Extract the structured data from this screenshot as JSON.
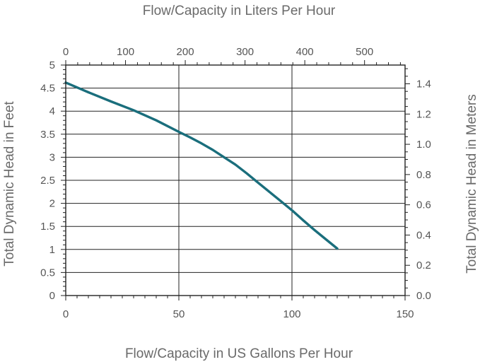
{
  "chart_data": {
    "type": "line",
    "title": "",
    "xlabel": "Flow/Capacity in US Gallons Per Hour",
    "ylabel": "Total Dynamic Head in Feet",
    "x2label": "Flow/Capacity in Liters Per Hour",
    "y2label": "Total Dynamic Head in Meters",
    "xlim": [
      0,
      150
    ],
    "ylim": [
      0,
      5
    ],
    "x2lim": [
      0,
      567.8
    ],
    "y2lim": [
      0,
      1.524
    ],
    "x_ticks": [
      "0",
      "50",
      "100",
      "150"
    ],
    "y_ticks": [
      "0",
      "0.5",
      "1",
      "1.5",
      "2",
      "2.5",
      "3",
      "3.5",
      "4",
      "4.5",
      "5"
    ],
    "x2_ticks": [
      "0",
      "100",
      "200",
      "300",
      "400",
      "500"
    ],
    "y2_ticks": [
      "0.0",
      "0.2",
      "0.4",
      "0.6",
      "0.8",
      "1.0",
      "1.2",
      "1.4"
    ],
    "grid": true,
    "series_color": "#1a6e7c",
    "series": [
      {
        "x": [
          0,
          10,
          20,
          30,
          40,
          50,
          55,
          60,
          65,
          70,
          75,
          80,
          85,
          90,
          95,
          100,
          105,
          110,
          115,
          120
        ],
        "y": [
          4.62,
          4.41,
          4.21,
          4.02,
          3.8,
          3.55,
          3.43,
          3.3,
          3.16,
          3.0,
          2.84,
          2.65,
          2.45,
          2.25,
          2.05,
          1.85,
          1.63,
          1.42,
          1.22,
          1.02
        ]
      }
    ]
  }
}
